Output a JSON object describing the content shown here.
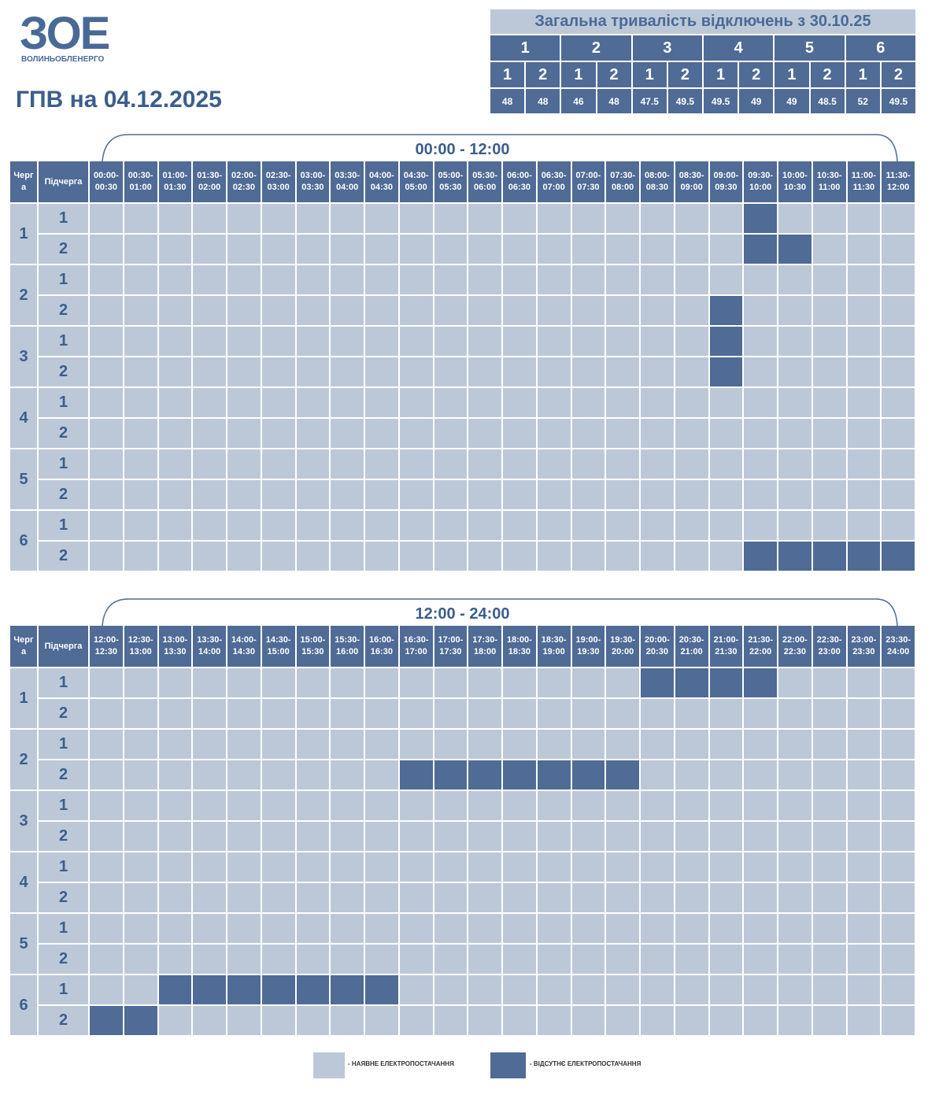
{
  "logo": {
    "mark": "ЗОЕ",
    "name": "ВОЛИНЬОБЛЕНЕРГО"
  },
  "title": "ГПВ на 04.12.2025",
  "summary": {
    "title": "Загальна тривалість відключень з 30.10.25",
    "queues": [
      {
        "label": "1",
        "subqueues": [
          {
            "label": "1",
            "hours": 48
          },
          {
            "label": "2",
            "hours": 48
          }
        ]
      },
      {
        "label": "2",
        "subqueues": [
          {
            "label": "1",
            "hours": 46
          },
          {
            "label": "2",
            "hours": 48
          }
        ]
      },
      {
        "label": "3",
        "subqueues": [
          {
            "label": "1",
            "hours": 47.5
          },
          {
            "label": "2",
            "hours": 49.5
          }
        ]
      },
      {
        "label": "4",
        "subqueues": [
          {
            "label": "1",
            "hours": 49.5
          },
          {
            "label": "2",
            "hours": 49
          }
        ]
      },
      {
        "label": "5",
        "subqueues": [
          {
            "label": "1",
            "hours": 49
          },
          {
            "label": "2",
            "hours": 48.5
          }
        ]
      },
      {
        "label": "6",
        "subqueues": [
          {
            "label": "1",
            "hours": 52
          },
          {
            "label": "2",
            "hours": 49.5
          }
        ]
      }
    ]
  },
  "schedules": [
    {
      "period": "00:00 - 12:00",
      "queue_header": "Черга",
      "subqueue_header": "Підчерга",
      "slots": [
        "00:00-00:30",
        "00:30-01:00",
        "01:00-01:30",
        "01:30-02:00",
        "02:00-02:30",
        "02:30-03:00",
        "03:00-03:30",
        "03:30-04:00",
        "04:00-04:30",
        "04:30-05:00",
        "05:00-05:30",
        "05:30-06:00",
        "06:00-06:30",
        "06:30-07:00",
        "07:00-07:30",
        "07:30-08:00",
        "08:00-08:30",
        "08:30-09:00",
        "09:00-09:30",
        "09:30-10:00",
        "10:00-10:30",
        "10:30-11:00",
        "11:00-11:30",
        "11:30-12:00"
      ],
      "queues": [
        {
          "label": "1",
          "subqueues": [
            {
              "label": "1",
              "status": [
                0,
                0,
                0,
                0,
                0,
                0,
                0,
                0,
                0,
                0,
                0,
                0,
                0,
                0,
                0,
                0,
                0,
                0,
                0,
                1,
                0,
                0,
                0,
                0
              ]
            },
            {
              "label": "2",
              "status": [
                0,
                0,
                0,
                0,
                0,
                0,
                0,
                0,
                0,
                0,
                0,
                0,
                0,
                0,
                0,
                0,
                0,
                0,
                0,
                1,
                1,
                0,
                0,
                0
              ]
            }
          ]
        },
        {
          "label": "2",
          "subqueues": [
            {
              "label": "1",
              "status": [
                0,
                0,
                0,
                0,
                0,
                0,
                0,
                0,
                0,
                0,
                0,
                0,
                0,
                0,
                0,
                0,
                0,
                0,
                0,
                0,
                0,
                0,
                0,
                0
              ]
            },
            {
              "label": "2",
              "status": [
                0,
                0,
                0,
                0,
                0,
                0,
                0,
                0,
                0,
                0,
                0,
                0,
                0,
                0,
                0,
                0,
                0,
                0,
                1,
                0,
                0,
                0,
                0,
                0
              ]
            }
          ]
        },
        {
          "label": "3",
          "subqueues": [
            {
              "label": "1",
              "status": [
                0,
                0,
                0,
                0,
                0,
                0,
                0,
                0,
                0,
                0,
                0,
                0,
                0,
                0,
                0,
                0,
                0,
                0,
                1,
                0,
                0,
                0,
                0,
                0
              ]
            },
            {
              "label": "2",
              "status": [
                0,
                0,
                0,
                0,
                0,
                0,
                0,
                0,
                0,
                0,
                0,
                0,
                0,
                0,
                0,
                0,
                0,
                0,
                1,
                0,
                0,
                0,
                0,
                0
              ]
            }
          ]
        },
        {
          "label": "4",
          "subqueues": [
            {
              "label": "1",
              "status": [
                0,
                0,
                0,
                0,
                0,
                0,
                0,
                0,
                0,
                0,
                0,
                0,
                0,
                0,
                0,
                0,
                0,
                0,
                0,
                0,
                0,
                0,
                0,
                0
              ]
            },
            {
              "label": "2",
              "status": [
                0,
                0,
                0,
                0,
                0,
                0,
                0,
                0,
                0,
                0,
                0,
                0,
                0,
                0,
                0,
                0,
                0,
                0,
                0,
                0,
                0,
                0,
                0,
                0
              ]
            }
          ]
        },
        {
          "label": "5",
          "subqueues": [
            {
              "label": "1",
              "status": [
                0,
                0,
                0,
                0,
                0,
                0,
                0,
                0,
                0,
                0,
                0,
                0,
                0,
                0,
                0,
                0,
                0,
                0,
                0,
                0,
                0,
                0,
                0,
                0
              ]
            },
            {
              "label": "2",
              "status": [
                0,
                0,
                0,
                0,
                0,
                0,
                0,
                0,
                0,
                0,
                0,
                0,
                0,
                0,
                0,
                0,
                0,
                0,
                0,
                0,
                0,
                0,
                0,
                0
              ]
            }
          ]
        },
        {
          "label": "6",
          "subqueues": [
            {
              "label": "1",
              "status": [
                0,
                0,
                0,
                0,
                0,
                0,
                0,
                0,
                0,
                0,
                0,
                0,
                0,
                0,
                0,
                0,
                0,
                0,
                0,
                0,
                0,
                0,
                0,
                0
              ]
            },
            {
              "label": "2",
              "status": [
                0,
                0,
                0,
                0,
                0,
                0,
                0,
                0,
                0,
                0,
                0,
                0,
                0,
                0,
                0,
                0,
                0,
                0,
                0,
                1,
                1,
                1,
                1,
                1
              ]
            }
          ]
        }
      ]
    },
    {
      "period": "12:00 - 24:00",
      "queue_header": "Черга",
      "subqueue_header": "Підчерга",
      "slots": [
        "12:00-12:30",
        "12:30-13:00",
        "13:00-13:30",
        "13:30-14:00",
        "14:00-14:30",
        "14:30-15:00",
        "15:00-15:30",
        "15:30-16:00",
        "16:00-16:30",
        "16:30-17:00",
        "17:00-17:30",
        "17:30-18:00",
        "18:00-18:30",
        "18:30-19:00",
        "19:00-19:30",
        "19:30-20:00",
        "20:00-20:30",
        "20:30-21:00",
        "21:00-21:30",
        "21:30-22:00",
        "22:00-22:30",
        "22:30-23:00",
        "23:00-23:30",
        "23:30-24:00"
      ],
      "queues": [
        {
          "label": "1",
          "subqueues": [
            {
              "label": "1",
              "status": [
                0,
                0,
                0,
                0,
                0,
                0,
                0,
                0,
                0,
                0,
                0,
                0,
                0,
                0,
                0,
                0,
                1,
                1,
                1,
                1,
                0,
                0,
                0,
                0
              ]
            },
            {
              "label": "2",
              "status": [
                0,
                0,
                0,
                0,
                0,
                0,
                0,
                0,
                0,
                0,
                0,
                0,
                0,
                0,
                0,
                0,
                0,
                0,
                0,
                0,
                0,
                0,
                0,
                0
              ]
            }
          ]
        },
        {
          "label": "2",
          "subqueues": [
            {
              "label": "1",
              "status": [
                0,
                0,
                0,
                0,
                0,
                0,
                0,
                0,
                0,
                0,
                0,
                0,
                0,
                0,
                0,
                0,
                0,
                0,
                0,
                0,
                0,
                0,
                0,
                0
              ]
            },
            {
              "label": "2",
              "status": [
                0,
                0,
                0,
                0,
                0,
                0,
                0,
                0,
                0,
                1,
                1,
                1,
                1,
                1,
                1,
                1,
                0,
                0,
                0,
                0,
                0,
                0,
                0,
                0
              ]
            }
          ]
        },
        {
          "label": "3",
          "subqueues": [
            {
              "label": "1",
              "status": [
                0,
                0,
                0,
                0,
                0,
                0,
                0,
                0,
                0,
                0,
                0,
                0,
                0,
                0,
                0,
                0,
                0,
                0,
                0,
                0,
                0,
                0,
                0,
                0
              ]
            },
            {
              "label": "2",
              "status": [
                0,
                0,
                0,
                0,
                0,
                0,
                0,
                0,
                0,
                0,
                0,
                0,
                0,
                0,
                0,
                0,
                0,
                0,
                0,
                0,
                0,
                0,
                0,
                0
              ]
            }
          ]
        },
        {
          "label": "4",
          "subqueues": [
            {
              "label": "1",
              "status": [
                0,
                0,
                0,
                0,
                0,
                0,
                0,
                0,
                0,
                0,
                0,
                0,
                0,
                0,
                0,
                0,
                0,
                0,
                0,
                0,
                0,
                0,
                0,
                0
              ]
            },
            {
              "label": "2",
              "status": [
                0,
                0,
                0,
                0,
                0,
                0,
                0,
                0,
                0,
                0,
                0,
                0,
                0,
                0,
                0,
                0,
                0,
                0,
                0,
                0,
                0,
                0,
                0,
                0
              ]
            }
          ]
        },
        {
          "label": "5",
          "subqueues": [
            {
              "label": "1",
              "status": [
                0,
                0,
                0,
                0,
                0,
                0,
                0,
                0,
                0,
                0,
                0,
                0,
                0,
                0,
                0,
                0,
                0,
                0,
                0,
                0,
                0,
                0,
                0,
                0
              ]
            },
            {
              "label": "2",
              "status": [
                0,
                0,
                0,
                0,
                0,
                0,
                0,
                0,
                0,
                0,
                0,
                0,
                0,
                0,
                0,
                0,
                0,
                0,
                0,
                0,
                0,
                0,
                0,
                0
              ]
            }
          ]
        },
        {
          "label": "6",
          "subqueues": [
            {
              "label": "1",
              "status": [
                0,
                0,
                1,
                1,
                1,
                1,
                1,
                1,
                1,
                0,
                0,
                0,
                0,
                0,
                0,
                0,
                0,
                0,
                0,
                0,
                0,
                0,
                0,
                0
              ]
            },
            {
              "label": "2",
              "status": [
                1,
                1,
                0,
                0,
                0,
                0,
                0,
                0,
                0,
                0,
                0,
                0,
                0,
                0,
                0,
                0,
                0,
                0,
                0,
                0,
                0,
                0,
                0,
                0
              ]
            }
          ]
        }
      ]
    }
  ],
  "legend": {
    "items": [
      {
        "label": "- НАЯВНЕ ЕЛЕКТРОПОСТАЧАННЯ",
        "status": 0,
        "color": "#bcc8d8"
      },
      {
        "label": "- ВІДСУТНЄ ЕЛЕКТРОПОСТАЧАННЯ",
        "status": 1,
        "color": "#4f6b96"
      }
    ]
  }
}
